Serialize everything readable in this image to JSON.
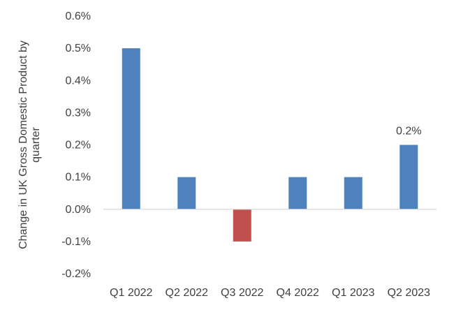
{
  "chart_data": {
    "type": "bar",
    "categories": [
      "Q1 2022",
      "Q2 2022",
      "Q3 2022",
      "Q4 2022",
      "Q1 2023",
      "Q2 2023"
    ],
    "values": [
      0.5,
      0.1,
      -0.1,
      0.1,
      0.1,
      0.2
    ],
    "value_unit": "%",
    "ylabel_lines": [
      "Change in UK Gross Domestic Product by",
      "quarter"
    ],
    "yticks": [
      "0.6%",
      "0.5%",
      "0.4%",
      "0.3%",
      "0.2%",
      "0.1%",
      "0.0%",
      "-0.1%",
      "-0.2%"
    ],
    "ylim": [
      -0.2,
      0.6
    ],
    "grid": false,
    "legend": "none",
    "data_labels": [
      {
        "category": "Q2 2023",
        "text": "0.2%"
      }
    ],
    "colors": {
      "positive": "#4f81bd",
      "negative": "#c0504d",
      "axis": "#d9d9d9",
      "text": "#404040"
    }
  }
}
